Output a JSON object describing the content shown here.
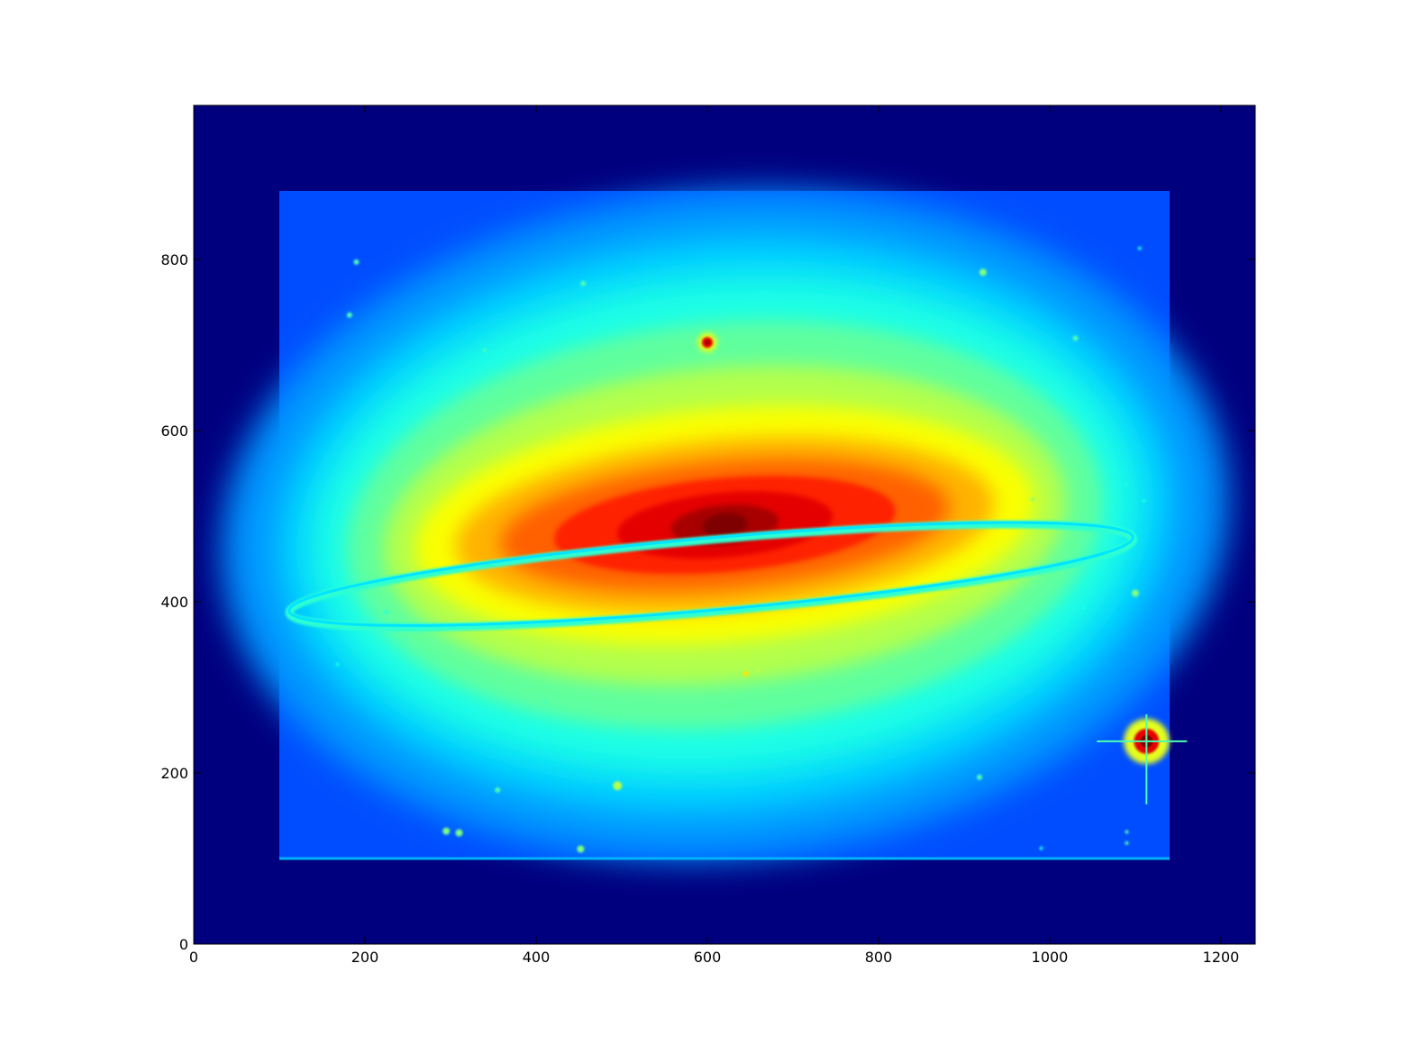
{
  "chart_data": {
    "type": "heatmap",
    "title": "",
    "xlabel": "",
    "ylabel": "",
    "xlim": [
      0,
      1240
    ],
    "ylim": [
      0,
      980
    ],
    "x_ticks": [
      {
        "value": 0,
        "label": "0"
      },
      {
        "value": 200,
        "label": "200"
      },
      {
        "value": 400,
        "label": "400"
      },
      {
        "value": 600,
        "label": "600"
      },
      {
        "value": 800,
        "label": "800"
      },
      {
        "value": 1000,
        "label": "1000"
      },
      {
        "value": 1200,
        "label": "1200"
      }
    ],
    "y_ticks": [
      {
        "value": 0,
        "label": "0"
      },
      {
        "value": 200,
        "label": "200"
      },
      {
        "value": 400,
        "label": "400"
      },
      {
        "value": 600,
        "label": "600"
      },
      {
        "value": 800,
        "label": "800"
      }
    ],
    "colormap": "jet",
    "background_color": "#00007f",
    "image_region": {
      "x": [
        100,
        1140
      ],
      "y": [
        100,
        880
      ]
    },
    "galaxy": {
      "center": [
        620,
        495
      ],
      "tilt_deg": -5
    },
    "stars": [
      {
        "x": 1113,
        "y": 237,
        "r": 14,
        "level": 1.0
      },
      {
        "x": 600,
        "y": 703,
        "r": 6,
        "level": 0.95
      },
      {
        "x": 495,
        "y": 185,
        "r": 5,
        "level": 0.55
      },
      {
        "x": 452,
        "y": 111,
        "r": 4,
        "level": 0.5
      },
      {
        "x": 295,
        "y": 132,
        "r": 4,
        "level": 0.5
      },
      {
        "x": 310,
        "y": 130,
        "r": 4,
        "level": 0.5
      },
      {
        "x": 922,
        "y": 785,
        "r": 4,
        "level": 0.5
      },
      {
        "x": 1100,
        "y": 410,
        "r": 4,
        "level": 0.5
      },
      {
        "x": 645,
        "y": 316,
        "r": 3,
        "level": 0.65
      },
      {
        "x": 660,
        "y": 320,
        "r": 3,
        "level": 0.55
      },
      {
        "x": 918,
        "y": 195,
        "r": 3,
        "level": 0.45
      },
      {
        "x": 920,
        "y": 677,
        "r": 3,
        "level": 0.45
      },
      {
        "x": 182,
        "y": 735,
        "r": 3,
        "level": 0.45
      },
      {
        "x": 190,
        "y": 797,
        "r": 3,
        "level": 0.45
      },
      {
        "x": 455,
        "y": 772,
        "r": 3,
        "level": 0.45
      },
      {
        "x": 975,
        "y": 643,
        "r": 3,
        "level": 0.45
      },
      {
        "x": 1030,
        "y": 708,
        "r": 3,
        "level": 0.45
      },
      {
        "x": 355,
        "y": 180,
        "r": 3,
        "level": 0.45
      },
      {
        "x": 247,
        "y": 357,
        "r": 3,
        "level": 0.45
      },
      {
        "x": 410,
        "y": 283,
        "r": 3,
        "level": 0.45
      },
      {
        "x": 1090,
        "y": 131,
        "r": 2,
        "level": 0.45
      },
      {
        "x": 1090,
        "y": 118,
        "r": 2,
        "level": 0.45
      },
      {
        "x": 168,
        "y": 327,
        "r": 2,
        "level": 0.4
      },
      {
        "x": 225,
        "y": 388,
        "r": 2,
        "level": 0.4
      },
      {
        "x": 1105,
        "y": 813,
        "r": 2,
        "level": 0.4
      },
      {
        "x": 1090,
        "y": 537,
        "r": 2,
        "level": 0.4
      },
      {
        "x": 1110,
        "y": 518,
        "r": 2,
        "level": 0.4
      },
      {
        "x": 990,
        "y": 112,
        "r": 2,
        "level": 0.4
      },
      {
        "x": 340,
        "y": 694,
        "r": 2,
        "level": 0.45
      },
      {
        "x": 980,
        "y": 520,
        "r": 2,
        "level": 0.5
      },
      {
        "x": 1040,
        "y": 393,
        "r": 2,
        "level": 0.4
      }
    ]
  }
}
